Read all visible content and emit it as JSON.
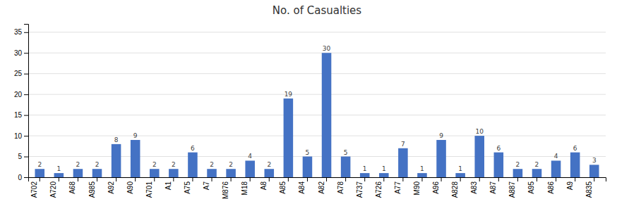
{
  "chart_data": {
    "type": "bar",
    "title": "No. of Casualties",
    "categories": [
      "A702",
      "A720",
      "A68",
      "A985",
      "A92",
      "A90",
      "A701",
      "A1",
      "A75",
      "A7",
      "M876",
      "M18",
      "A8",
      "A85",
      "A84",
      "A82",
      "A78",
      "A737",
      "A726",
      "A77",
      "M90",
      "A96",
      "A828",
      "A83",
      "A87",
      "A887",
      "A95",
      "A86",
      "A9",
      "A835"
    ],
    "values": [
      2,
      1,
      2,
      2,
      8,
      9,
      2,
      2,
      6,
      2,
      2,
      4,
      2,
      19,
      5,
      30,
      5,
      1,
      1,
      7,
      1,
      9,
      1,
      10,
      6,
      2,
      2,
      4,
      6,
      3
    ],
    "color": "#4472C4",
    "ylim": [
      0,
      37
    ],
    "yticks": [
      0,
      5,
      10,
      15,
      20,
      25,
      30,
      35
    ],
    "grid": true,
    "data_labels": true
  }
}
